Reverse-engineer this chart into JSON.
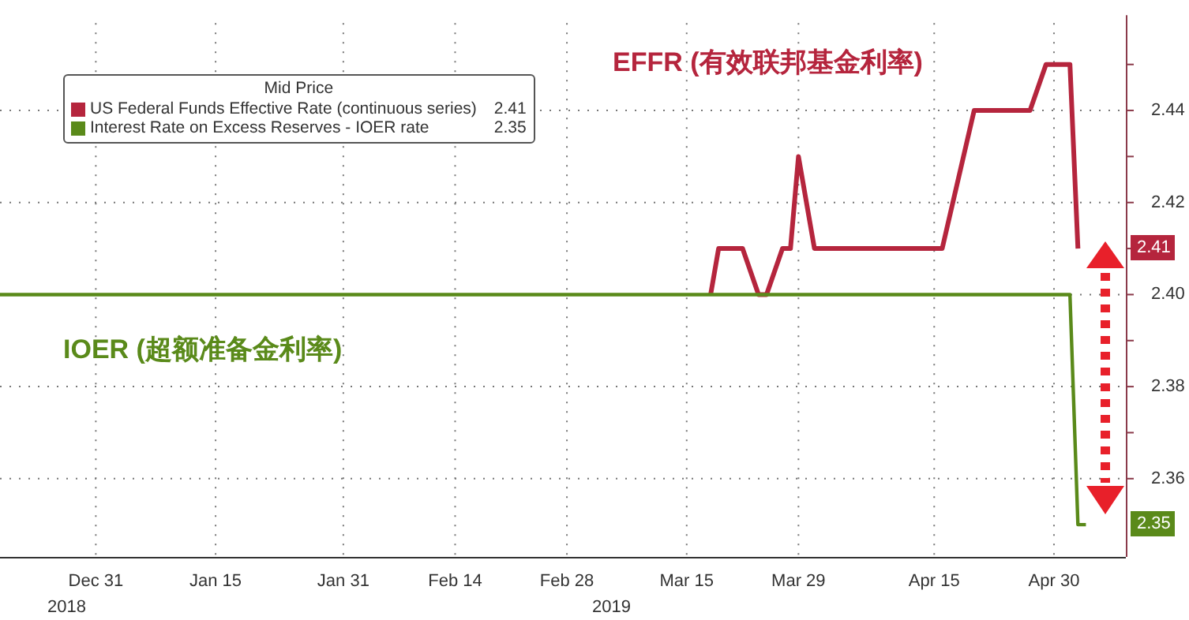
{
  "chart_data": {
    "type": "line",
    "legend_title": "Mid Price",
    "legend": "top left",
    "grid": true,
    "line_style": "solid",
    "marker": "none",
    "xlim": [
      "2018-12-19",
      "2019-05-09"
    ],
    "xticks": [
      {
        "value": "2018-12-31",
        "label": "Dec 31"
      },
      {
        "value": "2019-01-15",
        "label": "Jan 15"
      },
      {
        "value": "2019-01-31",
        "label": "Jan 31"
      },
      {
        "value": "2019-02-14",
        "label": "Feb 14"
      },
      {
        "value": "2019-02-28",
        "label": "Feb 28"
      },
      {
        "value": "2019-03-15",
        "label": "Mar 15"
      },
      {
        "value": "2019-03-29",
        "label": "Mar 29"
      },
      {
        "value": "2019-04-15",
        "label": "Apr 15"
      },
      {
        "value": "2019-04-30",
        "label": "Apr 30"
      }
    ],
    "ylim": [
      2.343,
      2.459
    ],
    "yticks": [
      2.36,
      {
        "value": 2.37,
        "label": null
      },
      2.38,
      {
        "value": 2.39,
        "label": null
      },
      {
        "value": 2.4,
        "label": "2.40"
      },
      {
        "value": 2.41,
        "label": null
      },
      2.42,
      {
        "value": 2.43,
        "label": null
      },
      2.44,
      {
        "value": 2.45,
        "label": null
      }
    ],
    "annotations": [
      "EFFR (有效联邦基金利率)",
      "IOER (超额准备金利率)",
      "2018",
      "2019",
      "2.41",
      "2.35",
      "2.41",
      "2.35"
    ],
    "series": [
      {
        "name": "US Federal Funds Effective Rate (continuous series)",
        "color": "#b5253d",
        "x": [
          "2019-03-18",
          "2019-03-19",
          "2019-03-22",
          "2019-03-24",
          "2019-03-25",
          "2019-03-27",
          "2019-03-28",
          "2019-03-29",
          "2019-03-31",
          "2019-04-16",
          "2019-04-20",
          "2019-04-27",
          "2019-04-29",
          "2019-05-02",
          "2019-05-03"
        ],
        "values": [
          2.4,
          2.41,
          2.41,
          2.4,
          2.4,
          2.41,
          2.41,
          2.43,
          2.41,
          2.41,
          2.44,
          2.44,
          2.45,
          2.45,
          2.41
        ]
      },
      {
        "name": "Interest Rate on Excess Reserves - IOER rate",
        "color": "#5a8a1a",
        "x": [
          "2018-12-19",
          "2019-05-02",
          "2019-05-03",
          "2019-05-04"
        ],
        "values": [
          2.4,
          2.4,
          2.35,
          2.35
        ]
      }
    ]
  }
}
